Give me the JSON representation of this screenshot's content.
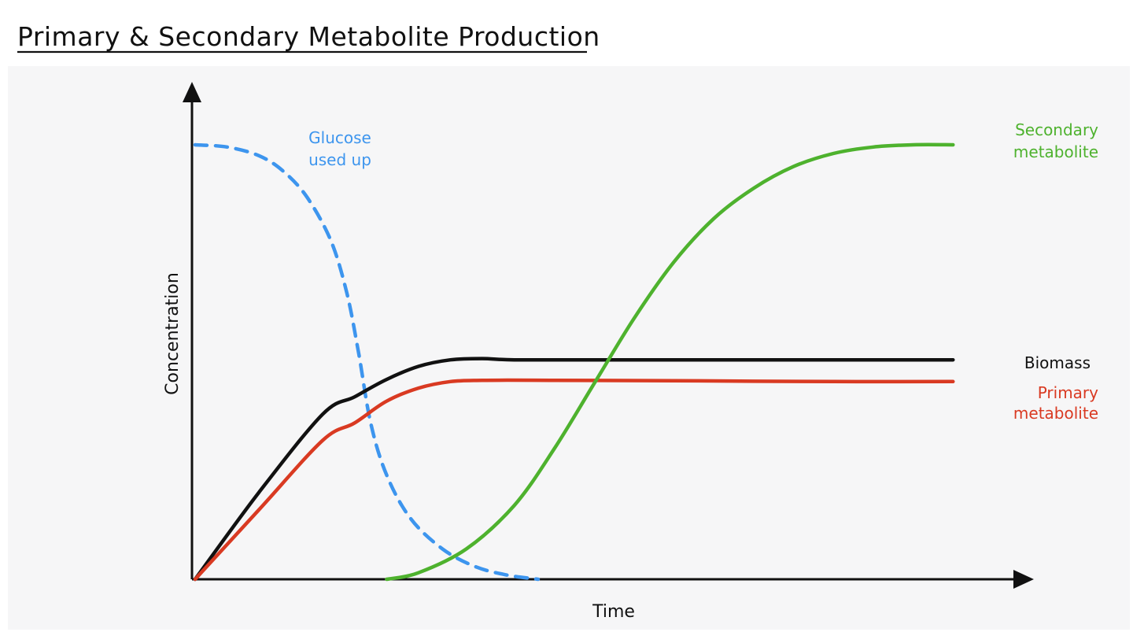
{
  "chart_data": {
    "type": "line",
    "title": "Primary & Secondary Metabolite Production",
    "xlabel": "Time",
    "ylabel": "Concentration",
    "xlim": [
      0,
      100
    ],
    "ylim": [
      0,
      100
    ],
    "grid": false,
    "legend": "inline-right",
    "series": [
      {
        "key": "glucose",
        "label_lines": [
          "Glucose",
          "used up"
        ],
        "color": "#3d95ee",
        "style": "dashed",
        "points": [
          [
            0,
            100
          ],
          [
            4,
            99.5
          ],
          [
            8,
            97.5
          ],
          [
            11,
            94
          ],
          [
            14,
            88
          ],
          [
            17,
            78
          ],
          [
            19,
            66
          ],
          [
            20.5,
            52
          ],
          [
            22,
            36
          ],
          [
            24,
            24
          ],
          [
            27,
            14
          ],
          [
            31,
            7
          ],
          [
            35,
            3
          ],
          [
            39,
            1
          ],
          [
            43,
            0
          ]
        ]
      },
      {
        "key": "biomass",
        "label_lines": [
          "Biomass"
        ],
        "color": "#111111",
        "style": "solid",
        "points": [
          [
            0,
            0
          ],
          [
            8,
            20
          ],
          [
            16,
            38
          ],
          [
            20,
            42
          ],
          [
            24,
            46
          ],
          [
            28,
            49
          ],
          [
            32,
            50.5
          ],
          [
            36,
            50.8
          ],
          [
            40,
            50.5
          ],
          [
            50,
            50.5
          ],
          [
            60,
            50.5
          ],
          [
            70,
            50.5
          ],
          [
            80,
            50.5
          ],
          [
            90,
            50.5
          ],
          [
            95,
            50.5
          ]
        ]
      },
      {
        "key": "primary",
        "label_lines": [
          "Primary",
          "metabolite"
        ],
        "color": "#d93a22",
        "style": "solid",
        "points": [
          [
            0,
            0
          ],
          [
            8,
            16
          ],
          [
            16,
            32
          ],
          [
            20,
            36
          ],
          [
            24,
            41
          ],
          [
            28,
            44
          ],
          [
            32,
            45.5
          ],
          [
            36,
            45.8
          ],
          [
            45,
            45.8
          ],
          [
            60,
            45.7
          ],
          [
            80,
            45.5
          ],
          [
            95,
            45.5
          ]
        ]
      },
      {
        "key": "secondary",
        "label_lines": [
          "Secondary",
          "metabolite"
        ],
        "color": "#4eb22e",
        "style": "solid",
        "points": [
          [
            24,
            0
          ],
          [
            28,
            1.5
          ],
          [
            34,
            7
          ],
          [
            40,
            17
          ],
          [
            45,
            30
          ],
          [
            50,
            45
          ],
          [
            55,
            60
          ],
          [
            60,
            73
          ],
          [
            65,
            83
          ],
          [
            70,
            90
          ],
          [
            75,
            95
          ],
          [
            80,
            98
          ],
          [
            85,
            99.5
          ],
          [
            90,
            100
          ],
          [
            95,
            100
          ]
        ]
      }
    ]
  }
}
